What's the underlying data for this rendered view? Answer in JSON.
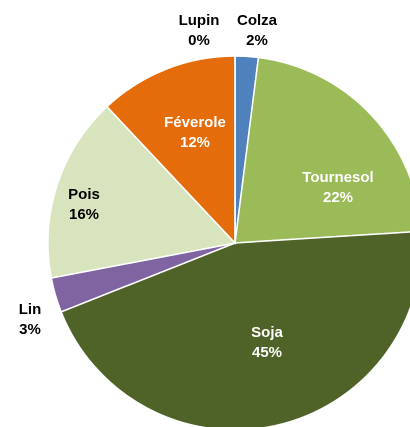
{
  "chart_data": {
    "type": "pie",
    "categories": [
      "Colza",
      "Tournesol",
      "Soja",
      "Lin",
      "Pois",
      "Féverole",
      "Lupin"
    ],
    "values": [
      2,
      22,
      45,
      3,
      16,
      12,
      0
    ],
    "value_labels": [
      "2%",
      "22%",
      "45%",
      "3%",
      "16%",
      "12%",
      "0%"
    ],
    "colors": [
      "#4f81bd",
      "#9bbb59",
      "#4f6228",
      "#8064a2",
      "#d7e4bd",
      "#e46c0a",
      "#f79646"
    ]
  }
}
